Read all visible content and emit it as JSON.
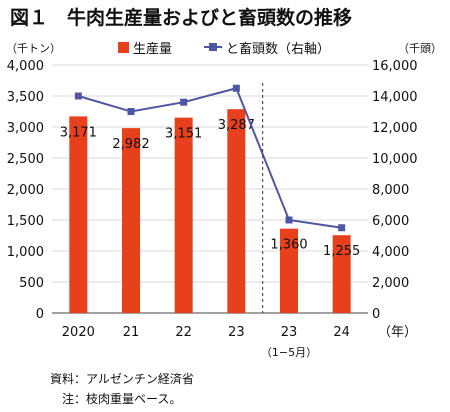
{
  "title": "図１　牛肉生産量およびと畜頭数の推移",
  "source": "資料：アルゼンチン経済省",
  "note": "注：枝肉重量ベース。",
  "chart_data": {
    "type": "bar",
    "categories": [
      "2020",
      "21",
      "22",
      "23",
      "23",
      "24"
    ],
    "category_sublabels": [
      "",
      "",
      "",
      "",
      "（1−5月）",
      ""
    ],
    "x_unit": "（年）",
    "y_left_unit": "（千トン）",
    "y_right_unit": "（千頭）",
    "ylim_left": [
      0,
      4000
    ],
    "ylim_right": [
      0,
      16000
    ],
    "yticks_left": [
      "0",
      "500",
      "1,000",
      "1,500",
      "2,000",
      "2,500",
      "3,000",
      "3,500",
      "4,000"
    ],
    "yticks_right": [
      "0",
      "2,000",
      "4,000",
      "6,000",
      "8,000",
      "10,000",
      "12,000",
      "14,000",
      "16,000"
    ],
    "divider_after_index": 3,
    "series": [
      {
        "name": "生産量",
        "type": "bar",
        "axis": "left",
        "color": "#e8401c",
        "values": [
          3171,
          2982,
          3151,
          3287,
          1360,
          1255
        ],
        "labels": [
          "3,171",
          "2,982",
          "3,151",
          "3,287",
          "1,360",
          "1,255"
        ]
      },
      {
        "name": "と畜頭数（右軸）",
        "type": "line",
        "axis": "right",
        "color": "#4f56a3",
        "values": [
          14000,
          13000,
          13600,
          14500,
          6000,
          5500
        ]
      }
    ]
  }
}
